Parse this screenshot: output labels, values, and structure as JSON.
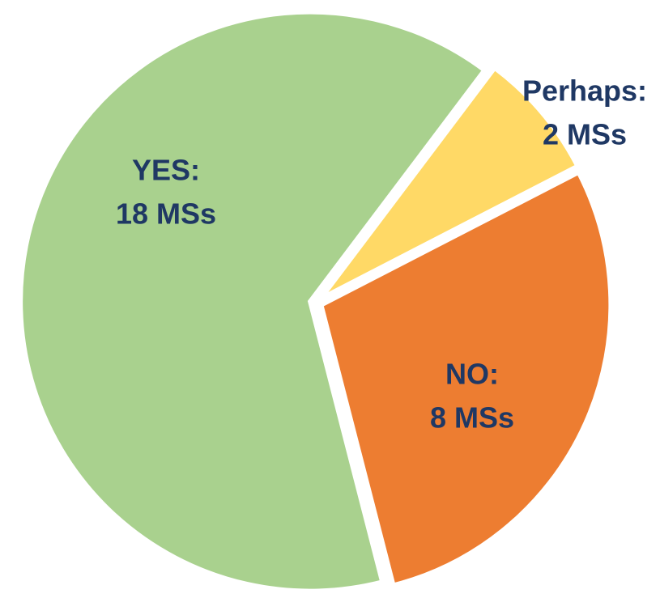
{
  "chart_data": {
    "type": "pie",
    "categories": [
      "Perhaps:",
      "NO:",
      "YES:"
    ],
    "values": [
      2,
      8,
      18
    ],
    "value_labels": [
      "2 MSs",
      "8 MSs",
      "18 MSs"
    ],
    "colors": [
      "#ffd966",
      "#ed7d31",
      "#a9d18e"
    ]
  }
}
